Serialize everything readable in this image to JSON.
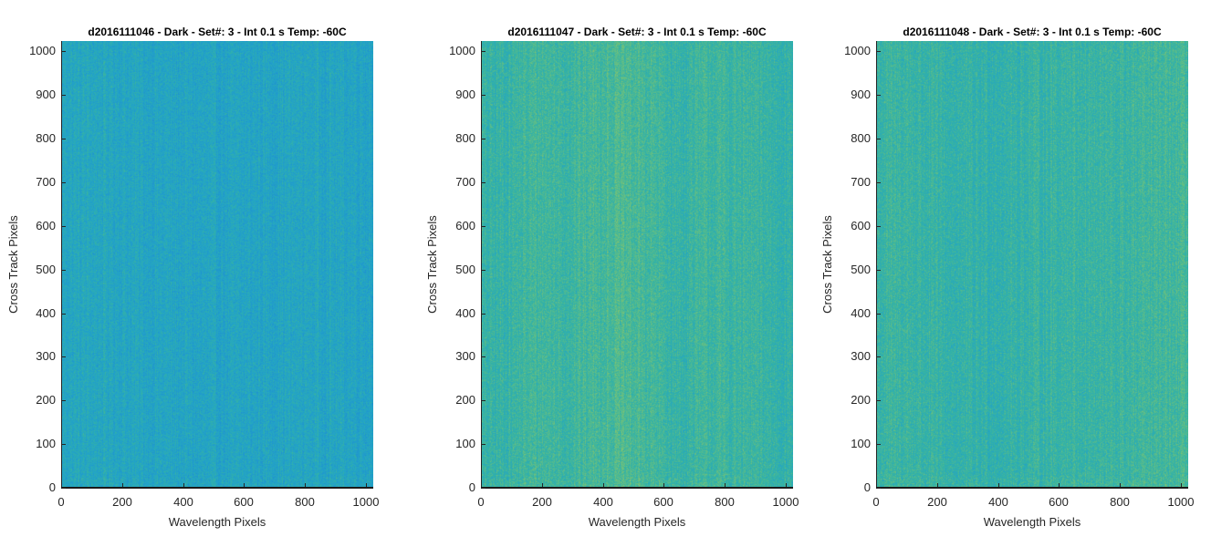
{
  "colors": {
    "axis": "#262626",
    "baseline": "#1a1a1a",
    "title": "#000000",
    "colormap": [
      "#1f8fd0",
      "#22a3c8",
      "#35b3a4",
      "#6cc07e",
      "#b9c94b"
    ]
  },
  "chart_data": [
    {
      "type": "heatmap",
      "title": "d2016111046 - Dark - Set#: 3 - Int 0.1 s Temp: -60C",
      "xlabel": "Wavelength Pixels",
      "ylabel": "Cross Track Pixels",
      "xlim": [
        0,
        1024
      ],
      "ylim": [
        0,
        1024
      ],
      "xticks": [
        "0",
        "200",
        "400",
        "600",
        "800",
        "1000"
      ],
      "yticks": [
        "0",
        "100",
        "200",
        "300",
        "400",
        "500",
        "600",
        "700",
        "800",
        "900",
        "1000"
      ],
      "colormap": "parula",
      "grid": false,
      "value_level": 0.28,
      "column_profile": [
        0.3,
        0.31,
        0.3,
        0.28,
        0.27,
        0.26,
        0.26,
        0.27,
        0.28,
        0.29,
        0.28,
        0.27
      ]
    },
    {
      "type": "heatmap",
      "title": "d2016111047 - Dark - Set#: 3 - Int 0.1 s Temp: -60C",
      "xlabel": "Wavelength Pixels",
      "ylabel": "Cross Track Pixels",
      "xlim": [
        0,
        1024
      ],
      "ylim": [
        0,
        1024
      ],
      "xticks": [
        "0",
        "200",
        "400",
        "600",
        "800",
        "1000"
      ],
      "yticks": [
        "0",
        "100",
        "200",
        "300",
        "400",
        "500",
        "600",
        "700",
        "800",
        "900",
        "1000"
      ],
      "colormap": "parula",
      "grid": false,
      "value_level": 0.5,
      "column_profile": [
        0.46,
        0.5,
        0.56,
        0.53,
        0.58,
        0.6,
        0.56,
        0.48,
        0.54,
        0.52,
        0.5,
        0.46
      ]
    },
    {
      "type": "heatmap",
      "title": "d2016111048 - Dark - Set#: 3 - Int 0.1 s Temp: -60C",
      "xlabel": "Wavelength Pixels",
      "ylabel": "Cross Track Pixels",
      "xlim": [
        0,
        1024
      ],
      "ylim": [
        0,
        1024
      ],
      "xticks": [
        "0",
        "200",
        "400",
        "600",
        "800",
        "1000"
      ],
      "yticks": [
        "0",
        "100",
        "200",
        "300",
        "400",
        "500",
        "600",
        "700",
        "800",
        "900",
        "1000"
      ],
      "colormap": "parula",
      "grid": false,
      "value_level": 0.5,
      "column_profile": [
        0.5,
        0.52,
        0.48,
        0.46,
        0.46,
        0.48,
        0.5,
        0.52,
        0.5,
        0.52,
        0.54,
        0.56
      ]
    }
  ]
}
